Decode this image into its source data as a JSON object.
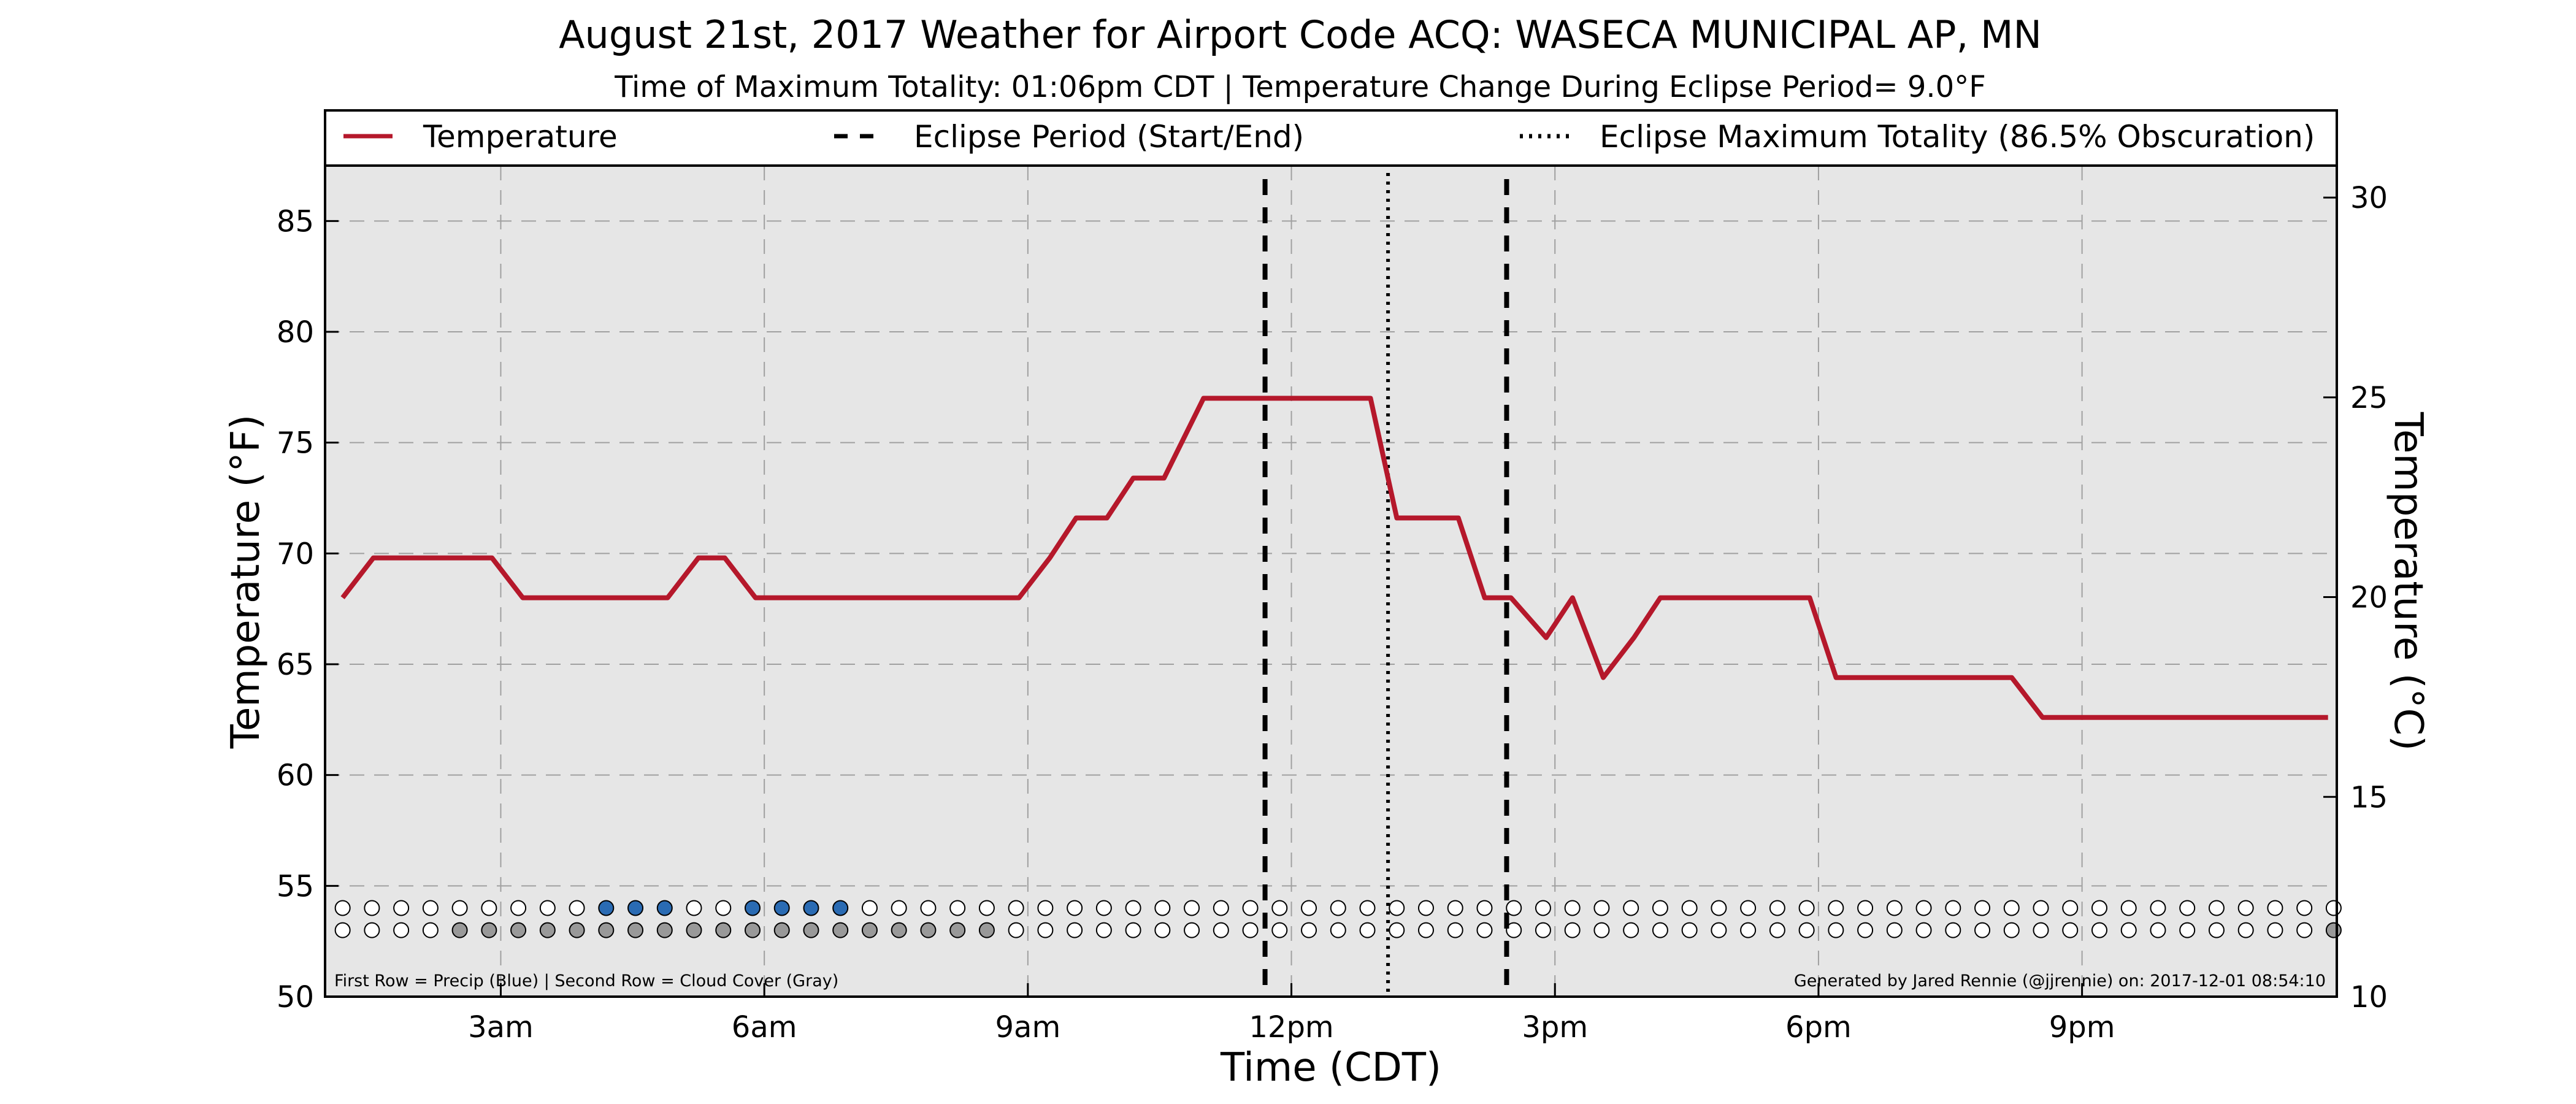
{
  "chart_data": {
    "type": "line",
    "title": "August 21st, 2017 Weather for Airport Code ACQ: WASECA MUNICIPAL AP, MN",
    "subtitle": "Time of Maximum Totality: 01:06pm CDT | Temperature Change During Eclipse Period= 9.0°F",
    "xlabel": "Time (CDT)",
    "ylabel": "Temperature (°F)",
    "ylabel_right": "Temperature (°C)",
    "xlim": [
      1.0,
      23.9
    ],
    "ylim": [
      50,
      87.5
    ],
    "ylim_right": [
      10,
      30.8
    ],
    "x_ticks": [
      {
        "x": 3,
        "label": "3am"
      },
      {
        "x": 6,
        "label": "6am"
      },
      {
        "x": 9,
        "label": "9am"
      },
      {
        "x": 12,
        "label": "12pm"
      },
      {
        "x": 15,
        "label": "3pm"
      },
      {
        "x": 18,
        "label": "6pm"
      },
      {
        "x": 21,
        "label": "9pm"
      }
    ],
    "y_ticks": [
      50,
      55,
      60,
      65,
      70,
      75,
      80,
      85
    ],
    "y_ticks_right": [
      10,
      15,
      20,
      25,
      30
    ],
    "grid": true,
    "legend_position": "top",
    "colors": {
      "temperature": "#b5182b",
      "precip": "#2a6bb3",
      "cloud": "#999999",
      "clear": "#ffffff",
      "background": "#e6e6e6"
    },
    "series": [
      {
        "name": "Temperature",
        "x": [
          1.2,
          1.55,
          2.0,
          2.5,
          2.9,
          3.25,
          3.6,
          4.0,
          4.5,
          4.9,
          5.25,
          5.55,
          5.9,
          6.4,
          7.0,
          7.5,
          8.0,
          8.5,
          8.9,
          9.25,
          9.55,
          9.9,
          10.2,
          10.55,
          11.0,
          11.5,
          12.0,
          12.5,
          12.9,
          13.2,
          13.55,
          13.9,
          14.2,
          14.5,
          14.9,
          15.2,
          15.55,
          15.9,
          16.2,
          16.55,
          16.9,
          17.2,
          17.55,
          17.9,
          18.2,
          18.5,
          19.0,
          19.5,
          19.9,
          20.2,
          20.55,
          21.0,
          21.5,
          22.0,
          22.5,
          23.0,
          23.4,
          23.8
        ],
        "values": [
          68.0,
          69.8,
          69.8,
          69.8,
          69.8,
          68.0,
          68.0,
          68.0,
          68.0,
          68.0,
          69.8,
          69.8,
          68.0,
          68.0,
          68.0,
          68.0,
          68.0,
          68.0,
          68.0,
          69.8,
          71.6,
          71.6,
          73.4,
          73.4,
          77.0,
          77.0,
          77.0,
          77.0,
          77.0,
          71.6,
          71.6,
          71.6,
          68.0,
          68.0,
          66.2,
          68.0,
          64.4,
          66.2,
          68.0,
          68.0,
          68.0,
          68.0,
          68.0,
          68.0,
          64.4,
          64.4,
          64.4,
          64.4,
          64.4,
          64.4,
          62.6,
          62.6,
          62.6,
          62.6,
          62.6,
          62.6,
          62.6,
          62.6
        ]
      }
    ],
    "eclipse_period": {
      "start": 11.7,
      "end": 14.45,
      "maximum": 13.1
    },
    "dot_rows": {
      "x_start": 1.2,
      "x_step": 0.3333,
      "precip_row_y": 54.0,
      "cloud_row_y": 53.0,
      "precip": [
        0,
        0,
        0,
        0,
        0,
        0,
        0,
        0,
        0,
        1,
        1,
        1,
        0,
        0,
        1,
        1,
        1,
        1,
        0,
        0,
        0,
        0,
        0,
        0,
        0,
        0,
        0,
        0,
        0,
        0,
        0,
        0,
        0,
        0,
        0,
        0,
        0,
        0,
        0,
        0,
        0,
        0,
        0,
        0,
        0,
        0,
        0,
        0,
        0,
        0,
        0,
        0,
        0,
        0,
        0,
        0,
        0,
        0,
        0,
        0,
        0,
        0,
        0,
        0,
        0,
        0,
        0,
        0,
        0
      ],
      "cloud": [
        0,
        0,
        0,
        0,
        1,
        1,
        1,
        1,
        1,
        1,
        1,
        1,
        1,
        1,
        1,
        1,
        1,
        1,
        1,
        1,
        1,
        1,
        1,
        0,
        0,
        0,
        0,
        0,
        0,
        0,
        0,
        0,
        0,
        0,
        0,
        0,
        0,
        0,
        0,
        0,
        0,
        0,
        0,
        0,
        0,
        0,
        0,
        0,
        0,
        0,
        0,
        0,
        0,
        0,
        0,
        0,
        0,
        0,
        0,
        0,
        0,
        0,
        0,
        0,
        0,
        0,
        0,
        0,
        1
      ]
    },
    "legend": [
      {
        "label": "Temperature",
        "style": "solid"
      },
      {
        "label": "Eclipse Period (Start/End)",
        "style": "dashed"
      },
      {
        "label": "Eclipse Maximum Totality (86.5% Obscuration)",
        "style": "dotted"
      }
    ],
    "notes": {
      "left": "First Row = Precip (Blue) | Second Row = Cloud Cover (Gray)",
      "right": "Generated by Jared Rennie (@jjrennie) on: 2017-12-01 08:54:10"
    }
  }
}
